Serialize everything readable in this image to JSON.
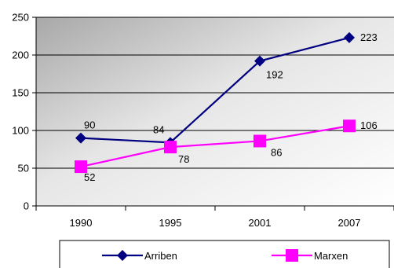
{
  "chart_data": {
    "type": "line",
    "categories": [
      "1990",
      "1995",
      "2001",
      "2007"
    ],
    "ylim": [
      0,
      250
    ],
    "yticks": [
      0,
      50,
      100,
      150,
      200,
      250
    ],
    "grid": true,
    "legend": "bottom",
    "series": [
      {
        "name": "Arriben",
        "values": [
          90,
          84,
          192,
          223
        ],
        "color": "#000080",
        "marker": "diamond"
      },
      {
        "name": "Marxen",
        "values": [
          52,
          78,
          86,
          106
        ],
        "color": "#ff00ff",
        "marker": "square"
      }
    ]
  }
}
